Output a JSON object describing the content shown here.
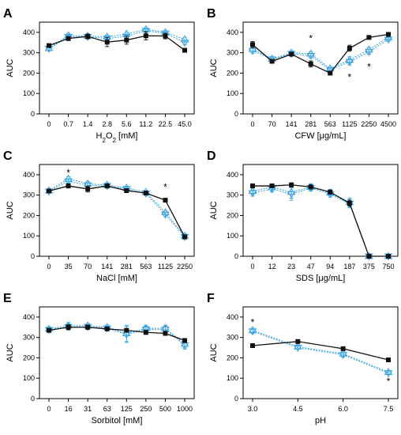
{
  "colors": {
    "black_series": "#111111",
    "blue_series": "#3aa3e0"
  },
  "chart_data": [
    {
      "panel": "A",
      "type": "line",
      "ylabel": "AUC",
      "xlabel_main": "H",
      "xlabel_sub": "2",
      "xlabel_main2": "O",
      "xlabel_sub2": "2",
      "xlabel_tail": " [mM]",
      "categories": [
        "0",
        "0.7",
        "1.4",
        "2.8",
        "5.6",
        "11.2",
        "22.5",
        "45.0"
      ],
      "ylim": [
        0,
        450
      ],
      "yticks": [
        "0",
        "100",
        "200",
        "300",
        "400"
      ],
      "series": [
        {
          "marker": "square",
          "color": "#111111",
          "dashed": false,
          "values": [
            335,
            370,
            380,
            352,
            362,
            383,
            382,
            312
          ],
          "err": [
            6,
            10,
            12,
            22,
            20,
            20,
            14,
            6
          ]
        },
        {
          "marker": "triangle-up",
          "color": "#3aa3e0",
          "dashed": true,
          "values": [
            322,
            385,
            382,
            378,
            392,
            415,
            400,
            365
          ],
          "err": [
            8,
            8,
            8,
            8,
            8,
            8,
            8,
            10
          ]
        },
        {
          "marker": "triangle-down",
          "color": "#3aa3e0",
          "dashed": true,
          "values": [
            320,
            378,
            378,
            370,
            380,
            408,
            395,
            350
          ],
          "err": [
            8,
            8,
            8,
            8,
            8,
            8,
            8,
            10
          ]
        }
      ],
      "stars": []
    },
    {
      "panel": "B",
      "type": "line",
      "ylabel": "AUC",
      "xlabel": "CFW [μg/mL]",
      "categories": [
        "0",
        "70",
        "141",
        "281",
        "563",
        "1125",
        "2250",
        "4500"
      ],
      "ylim": [
        0,
        450
      ],
      "yticks": [
        "0",
        "100",
        "200",
        "300",
        "400"
      ],
      "series": [
        {
          "marker": "square",
          "color": "#111111",
          "dashed": false,
          "values": [
            340,
            258,
            293,
            245,
            200,
            322,
            375,
            390
          ],
          "err": [
            15,
            8,
            10,
            15,
            8,
            15,
            6,
            6
          ]
        },
        {
          "marker": "triangle-up",
          "color": "#3aa3e0",
          "dashed": true,
          "values": [
            318,
            270,
            300,
            295,
            222,
            265,
            315,
            375
          ],
          "err": [
            12,
            10,
            10,
            10,
            10,
            15,
            12,
            8
          ]
        },
        {
          "marker": "triangle-down",
          "color": "#3aa3e0",
          "dashed": true,
          "values": [
            310,
            268,
            295,
            285,
            215,
            255,
            305,
            365
          ],
          "err": [
            12,
            10,
            10,
            10,
            10,
            15,
            12,
            8
          ]
        }
      ],
      "stars": [
        {
          "text": "*",
          "category_index": 3,
          "y": 370
        },
        {
          "text": "*",
          "category_index": 5,
          "y": 180
        },
        {
          "text": "*",
          "category_index": 6,
          "y": 230
        }
      ]
    },
    {
      "panel": "C",
      "type": "line",
      "ylabel": "AUC",
      "xlabel": "NaCl [mM]",
      "categories": [
        "0",
        "35",
        "70",
        "141",
        "281",
        "563",
        "1125",
        "2250"
      ],
      "ylim": [
        0,
        450
      ],
      "yticks": [
        "0",
        "100",
        "200",
        "300",
        "400"
      ],
      "series": [
        {
          "marker": "square",
          "color": "#111111",
          "dashed": false,
          "values": [
            320,
            345,
            330,
            345,
            322,
            310,
            275,
            95
          ],
          "err": [
            6,
            10,
            15,
            10,
            6,
            6,
            6,
            8
          ]
        },
        {
          "marker": "triangle-up",
          "color": "#3aa3e0",
          "dashed": true,
          "values": [
            322,
            380,
            355,
            350,
            335,
            315,
            215,
            100
          ],
          "err": [
            6,
            10,
            12,
            10,
            8,
            8,
            10,
            10
          ]
        },
        {
          "marker": "triangle-down",
          "color": "#3aa3e0",
          "dashed": true,
          "values": [
            318,
            368,
            348,
            345,
            330,
            308,
            205,
            95
          ],
          "err": [
            6,
            10,
            12,
            10,
            8,
            8,
            10,
            10
          ]
        }
      ],
      "stars": [
        {
          "text": "*",
          "category_index": 1,
          "y": 410
        },
        {
          "text": "*",
          "category_index": 6,
          "y": 340
        }
      ]
    },
    {
      "panel": "D",
      "type": "line",
      "ylabel": "AUC",
      "xlabel": "SDS [μg/mL]",
      "categories": [
        "0",
        "12",
        "23",
        "47",
        "94",
        "187",
        "375",
        "750"
      ],
      "ylim": [
        0,
        450
      ],
      "yticks": [
        "0",
        "100",
        "200",
        "300",
        "400"
      ],
      "series": [
        {
          "marker": "square",
          "color": "#111111",
          "dashed": false,
          "values": [
            345,
            345,
            350,
            340,
            315,
            260,
            0,
            0
          ],
          "err": [
            10,
            10,
            10,
            10,
            10,
            15,
            2,
            2
          ]
        },
        {
          "marker": "triangle-up",
          "color": "#3aa3e0",
          "dashed": true,
          "values": [
            320,
            338,
            315,
            340,
            312,
            265,
            0,
            0
          ],
          "err": [
            15,
            15,
            30,
            15,
            15,
            20,
            2,
            2
          ]
        },
        {
          "marker": "triangle-down",
          "color": "#3aa3e0",
          "dashed": true,
          "values": [
            310,
            330,
            305,
            335,
            305,
            258,
            0,
            0
          ],
          "err": [
            15,
            15,
            30,
            15,
            15,
            20,
            2,
            2
          ]
        }
      ],
      "stars": []
    },
    {
      "panel": "E",
      "type": "line",
      "ylabel": "AUC",
      "xlabel": "Sorbitol [mM]",
      "categories": [
        "0",
        "16",
        "31",
        "63",
        "125",
        "250",
        "500",
        "1000"
      ],
      "ylim": [
        0,
        450
      ],
      "yticks": [
        "0",
        "100",
        "200",
        "300",
        "400"
      ],
      "series": [
        {
          "marker": "square",
          "color": "#111111",
          "dashed": false,
          "values": [
            335,
            350,
            350,
            342,
            335,
            325,
            320,
            285
          ],
          "err": [
            8,
            12,
            10,
            8,
            8,
            10,
            10,
            10
          ]
        },
        {
          "marker": "triangle-up",
          "color": "#3aa3e0",
          "dashed": true,
          "values": [
            342,
            358,
            358,
            350,
            320,
            345,
            345,
            268
          ],
          "err": [
            8,
            15,
            10,
            10,
            40,
            15,
            15,
            20
          ]
        },
        {
          "marker": "triangle-down",
          "color": "#3aa3e0",
          "dashed": true,
          "values": [
            338,
            352,
            352,
            345,
            315,
            340,
            340,
            262
          ],
          "err": [
            8,
            15,
            10,
            10,
            40,
            15,
            15,
            20
          ]
        }
      ],
      "stars": []
    },
    {
      "panel": "F",
      "type": "line",
      "ylabel": "AUC",
      "xlabel": "pH",
      "categories": [
        "3.0",
        "4.5",
        "6.0",
        "7.5"
      ],
      "ylim": [
        0,
        450
      ],
      "yticks": [
        "0",
        "100",
        "200",
        "300",
        "400"
      ],
      "series": [
        {
          "marker": "square",
          "color": "#111111",
          "dashed": false,
          "values": [
            260,
            280,
            245,
            190
          ],
          "err": [
            5,
            5,
            5,
            5
          ]
        },
        {
          "marker": "triangle-up",
          "color": "#3aa3e0",
          "dashed": true,
          "values": [
            335,
            255,
            220,
            130
          ],
          "err": [
            10,
            8,
            10,
            8
          ]
        },
        {
          "marker": "triangle-down",
          "color": "#3aa3e0",
          "dashed": true,
          "values": [
            330,
            250,
            215,
            125
          ],
          "err": [
            10,
            8,
            10,
            8
          ]
        }
      ],
      "stars": [
        {
          "text": "*",
          "category_index": 0,
          "y": 375
        },
        {
          "text": "*",
          "category_index": 3,
          "y": 85
        }
      ]
    }
  ]
}
